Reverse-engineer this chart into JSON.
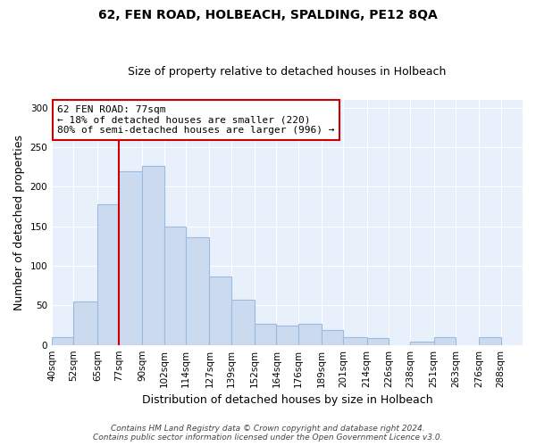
{
  "title": "62, FEN ROAD, HOLBEACH, SPALDING, PE12 8QA",
  "subtitle": "Size of property relative to detached houses in Holbeach",
  "xlabel": "Distribution of detached houses by size in Holbeach",
  "ylabel": "Number of detached properties",
  "bar_edges": [
    40,
    52,
    65,
    77,
    90,
    102,
    114,
    127,
    139,
    152,
    164,
    176,
    189,
    201,
    214,
    226,
    238,
    251,
    263,
    276,
    288
  ],
  "bar_heights": [
    10,
    55,
    178,
    220,
    226,
    150,
    136,
    86,
    57,
    27,
    25,
    27,
    19,
    10,
    9,
    0,
    4,
    10,
    0,
    10
  ],
  "bar_color": "#ccdaf0",
  "bar_edge_color": "#99bbdd",
  "vline_x": 77,
  "vline_color": "#cc0000",
  "annotation_title": "62 FEN ROAD: 77sqm",
  "annotation_line1": "← 18% of detached houses are smaller (220)",
  "annotation_line2": "80% of semi-detached houses are larger (996) →",
  "annotation_box_edge": "#cc0000",
  "ylim": [
    0,
    310
  ],
  "yticks": [
    0,
    50,
    100,
    150,
    200,
    250,
    300
  ],
  "x_tick_labels": [
    "40sqm",
    "52sqm",
    "65sqm",
    "77sqm",
    "90sqm",
    "102sqm",
    "114sqm",
    "127sqm",
    "139sqm",
    "152sqm",
    "164sqm",
    "176sqm",
    "189sqm",
    "201sqm",
    "214sqm",
    "226sqm",
    "238sqm",
    "251sqm",
    "263sqm",
    "276sqm",
    "288sqm"
  ],
  "footer_line1": "Contains HM Land Registry data © Crown copyright and database right 2024.",
  "footer_line2": "Contains public sector information licensed under the Open Government Licence v3.0.",
  "background_color": "#e8f0fc",
  "grid_color": "#ffffff",
  "title_fontsize": 10,
  "subtitle_fontsize": 9,
  "annotation_fontsize": 8,
  "footer_fontsize": 6.5
}
